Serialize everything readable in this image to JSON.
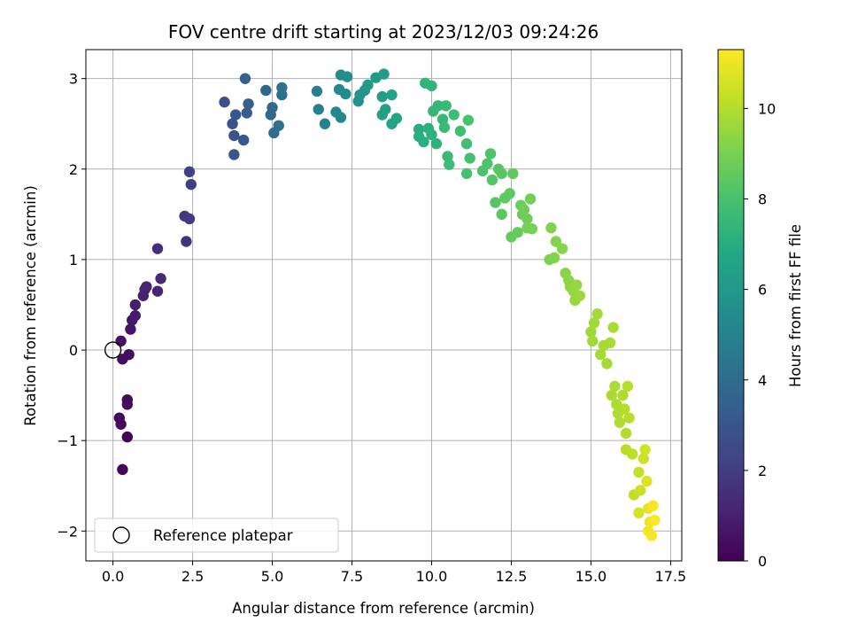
{
  "chart_data": {
    "type": "scatter",
    "title": "FOV centre drift starting at 2023/12/03 09:24:26",
    "xlabel": "Angular distance from reference (arcmin)",
    "ylabel": "Rotation from reference (arcmin)",
    "xlim": [
      -0.85,
      17.85
    ],
    "ylim": [
      -2.33,
      3.32
    ],
    "xticks": [
      "0.0",
      "2.5",
      "5.0",
      "7.5",
      "10.0",
      "12.5",
      "15.0",
      "17.5"
    ],
    "xtick_values": [
      0,
      2.5,
      5,
      7.5,
      10,
      12.5,
      15,
      17.5
    ],
    "yticks": [
      "−2",
      "−1",
      "0",
      "1",
      "2",
      "3"
    ],
    "ytick_values": [
      -2,
      -1,
      0,
      1,
      2,
      3
    ],
    "grid": true,
    "colormap": "viridis",
    "colorbar": {
      "label": "Hours from first FF file",
      "range": [
        0,
        11.3
      ],
      "ticks": [
        "0",
        "2",
        "4",
        "6",
        "8",
        "10"
      ],
      "tick_values": [
        0,
        2,
        4,
        6,
        8,
        10
      ]
    },
    "legend": {
      "placement": "lower-left",
      "entries": [
        "Reference platepar"
      ]
    },
    "reference_point": {
      "x": 0,
      "y": 0
    },
    "points": [
      {
        "x": 0.45,
        "y": -0.96,
        "t": 0.1
      },
      {
        "x": 0.3,
        "y": -1.32,
        "t": 0.15
      },
      {
        "x": 0.2,
        "y": -0.75,
        "t": 0.2
      },
      {
        "x": 0.25,
        "y": -0.82,
        "t": 0.25
      },
      {
        "x": 0.45,
        "y": -0.55,
        "t": 0.3
      },
      {
        "x": 0.45,
        "y": -0.6,
        "t": 0.35
      },
      {
        "x": 0.5,
        "y": -0.05,
        "t": 0.4
      },
      {
        "x": 0.3,
        "y": -0.1,
        "t": 0.45
      },
      {
        "x": 0.25,
        "y": 0.1,
        "t": 0.5
      },
      {
        "x": 0.55,
        "y": 0.23,
        "t": 0.6
      },
      {
        "x": 0.6,
        "y": 0.33,
        "t": 0.7
      },
      {
        "x": 0.7,
        "y": 0.38,
        "t": 0.8
      },
      {
        "x": 0.7,
        "y": 0.5,
        "t": 0.9
      },
      {
        "x": 0.95,
        "y": 0.6,
        "t": 1.0
      },
      {
        "x": 1.0,
        "y": 0.67,
        "t": 1.05
      },
      {
        "x": 1.05,
        "y": 0.7,
        "t": 1.1
      },
      {
        "x": 1.4,
        "y": 0.65,
        "t": 1.2
      },
      {
        "x": 1.5,
        "y": 0.79,
        "t": 1.3
      },
      {
        "x": 1.4,
        "y": 1.12,
        "t": 1.45
      },
      {
        "x": 2.3,
        "y": 1.2,
        "t": 1.7
      },
      {
        "x": 2.25,
        "y": 1.48,
        "t": 1.85
      },
      {
        "x": 2.4,
        "y": 1.45,
        "t": 1.95
      },
      {
        "x": 2.45,
        "y": 1.83,
        "t": 2.05
      },
      {
        "x": 2.4,
        "y": 1.97,
        "t": 2.15
      },
      {
        "x": 3.5,
        "y": 2.74,
        "t": 2.7
      },
      {
        "x": 3.75,
        "y": 2.5,
        "t": 2.8
      },
      {
        "x": 3.8,
        "y": 2.37,
        "t": 2.9
      },
      {
        "x": 3.85,
        "y": 2.6,
        "t": 3.0
      },
      {
        "x": 3.8,
        "y": 2.16,
        "t": 3.05
      },
      {
        "x": 4.1,
        "y": 2.32,
        "t": 3.15
      },
      {
        "x": 4.2,
        "y": 2.62,
        "t": 3.3
      },
      {
        "x": 4.25,
        "y": 2.72,
        "t": 3.4
      },
      {
        "x": 4.15,
        "y": 3.0,
        "t": 3.5
      },
      {
        "x": 4.8,
        "y": 2.87,
        "t": 3.75
      },
      {
        "x": 4.95,
        "y": 2.6,
        "t": 3.85
      },
      {
        "x": 5.0,
        "y": 2.68,
        "t": 3.95
      },
      {
        "x": 5.05,
        "y": 2.4,
        "t": 4.0
      },
      {
        "x": 5.2,
        "y": 2.48,
        "t": 4.1
      },
      {
        "x": 5.3,
        "y": 2.82,
        "t": 4.2
      },
      {
        "x": 5.3,
        "y": 2.9,
        "t": 4.3
      },
      {
        "x": 6.4,
        "y": 2.86,
        "t": 4.8
      },
      {
        "x": 6.45,
        "y": 2.66,
        "t": 4.9
      },
      {
        "x": 6.65,
        "y": 2.5,
        "t": 5.0
      },
      {
        "x": 7.0,
        "y": 2.63,
        "t": 5.15
      },
      {
        "x": 7.15,
        "y": 2.57,
        "t": 5.2
      },
      {
        "x": 7.1,
        "y": 2.88,
        "t": 5.3
      },
      {
        "x": 7.3,
        "y": 2.83,
        "t": 5.4
      },
      {
        "x": 7.15,
        "y": 3.04,
        "t": 5.5
      },
      {
        "x": 7.35,
        "y": 3.02,
        "t": 5.6
      },
      {
        "x": 7.7,
        "y": 2.75,
        "t": 5.75
      },
      {
        "x": 7.75,
        "y": 2.82,
        "t": 5.8
      },
      {
        "x": 7.9,
        "y": 2.87,
        "t": 5.9
      },
      {
        "x": 8.0,
        "y": 2.93,
        "t": 6.0
      },
      {
        "x": 8.25,
        "y": 3.01,
        "t": 6.1
      },
      {
        "x": 8.5,
        "y": 3.05,
        "t": 6.2
      },
      {
        "x": 8.45,
        "y": 2.8,
        "t": 6.3
      },
      {
        "x": 8.55,
        "y": 2.66,
        "t": 6.4
      },
      {
        "x": 8.45,
        "y": 2.6,
        "t": 6.45
      },
      {
        "x": 8.75,
        "y": 2.82,
        "t": 6.55
      },
      {
        "x": 8.75,
        "y": 2.5,
        "t": 6.6
      },
      {
        "x": 8.9,
        "y": 2.56,
        "t": 6.7
      },
      {
        "x": 9.6,
        "y": 2.44,
        "t": 7.0
      },
      {
        "x": 9.6,
        "y": 2.36,
        "t": 7.05
      },
      {
        "x": 9.75,
        "y": 2.3,
        "t": 7.1
      },
      {
        "x": 9.9,
        "y": 2.45,
        "t": 7.15
      },
      {
        "x": 10.0,
        "y": 2.38,
        "t": 7.2
      },
      {
        "x": 10.15,
        "y": 2.28,
        "t": 7.25
      },
      {
        "x": 9.8,
        "y": 2.95,
        "t": 7.3
      },
      {
        "x": 10.0,
        "y": 2.92,
        "t": 7.35
      },
      {
        "x": 10.05,
        "y": 2.64,
        "t": 7.4
      },
      {
        "x": 10.2,
        "y": 2.7,
        "t": 7.45
      },
      {
        "x": 10.35,
        "y": 2.55,
        "t": 7.5
      },
      {
        "x": 10.45,
        "y": 2.7,
        "t": 7.55
      },
      {
        "x": 10.4,
        "y": 2.46,
        "t": 7.6
      },
      {
        "x": 10.5,
        "y": 2.14,
        "t": 7.65
      },
      {
        "x": 10.55,
        "y": 2.05,
        "t": 7.7
      },
      {
        "x": 10.7,
        "y": 2.6,
        "t": 7.75
      },
      {
        "x": 10.9,
        "y": 2.42,
        "t": 7.8
      },
      {
        "x": 11.1,
        "y": 2.28,
        "t": 7.85
      },
      {
        "x": 11.2,
        "y": 2.12,
        "t": 7.9
      },
      {
        "x": 11.1,
        "y": 1.95,
        "t": 7.95
      },
      {
        "x": 11.15,
        "y": 2.54,
        "t": 8.0
      },
      {
        "x": 11.6,
        "y": 1.98,
        "t": 8.05
      },
      {
        "x": 11.75,
        "y": 2.06,
        "t": 8.1
      },
      {
        "x": 11.85,
        "y": 2.17,
        "t": 8.15
      },
      {
        "x": 11.9,
        "y": 1.88,
        "t": 8.2
      },
      {
        "x": 12.0,
        "y": 1.63,
        "t": 8.25
      },
      {
        "x": 12.1,
        "y": 2.0,
        "t": 8.3
      },
      {
        "x": 12.2,
        "y": 1.95,
        "t": 8.35
      },
      {
        "x": 12.2,
        "y": 1.5,
        "t": 8.4
      },
      {
        "x": 12.3,
        "y": 1.68,
        "t": 8.45
      },
      {
        "x": 12.45,
        "y": 1.73,
        "t": 8.5
      },
      {
        "x": 12.55,
        "y": 1.95,
        "t": 8.55
      },
      {
        "x": 12.5,
        "y": 1.25,
        "t": 8.6
      },
      {
        "x": 12.7,
        "y": 1.3,
        "t": 8.65
      },
      {
        "x": 12.8,
        "y": 1.6,
        "t": 8.7
      },
      {
        "x": 12.85,
        "y": 1.5,
        "t": 8.75
      },
      {
        "x": 12.9,
        "y": 1.55,
        "t": 8.8
      },
      {
        "x": 13.0,
        "y": 1.45,
        "t": 8.85
      },
      {
        "x": 13.1,
        "y": 1.67,
        "t": 8.9
      },
      {
        "x": 13.0,
        "y": 1.35,
        "t": 8.95
      },
      {
        "x": 13.15,
        "y": 1.34,
        "t": 9.0
      },
      {
        "x": 13.7,
        "y": 1.0,
        "t": 9.05
      },
      {
        "x": 13.75,
        "y": 1.35,
        "t": 9.1
      },
      {
        "x": 13.85,
        "y": 1.02,
        "t": 9.15
      },
      {
        "x": 13.9,
        "y": 1.2,
        "t": 9.2
      },
      {
        "x": 14.1,
        "y": 1.12,
        "t": 9.25
      },
      {
        "x": 14.2,
        "y": 0.85,
        "t": 9.3
      },
      {
        "x": 14.3,
        "y": 0.77,
        "t": 9.35
      },
      {
        "x": 14.35,
        "y": 0.7,
        "t": 9.4
      },
      {
        "x": 14.45,
        "y": 0.65,
        "t": 9.45
      },
      {
        "x": 14.55,
        "y": 0.72,
        "t": 9.5
      },
      {
        "x": 14.5,
        "y": 0.55,
        "t": 9.55
      },
      {
        "x": 14.65,
        "y": 0.6,
        "t": 9.6
      },
      {
        "x": 15.0,
        "y": 0.2,
        "t": 9.65
      },
      {
        "x": 15.05,
        "y": 0.1,
        "t": 9.7
      },
      {
        "x": 15.1,
        "y": 0.3,
        "t": 9.72
      },
      {
        "x": 15.2,
        "y": 0.4,
        "t": 9.74
      },
      {
        "x": 15.3,
        "y": -0.05,
        "t": 9.76
      },
      {
        "x": 15.4,
        "y": 0.05,
        "t": 9.78
      },
      {
        "x": 15.5,
        "y": -0.15,
        "t": 9.8
      },
      {
        "x": 15.6,
        "y": 0.08,
        "t": 9.82
      },
      {
        "x": 15.7,
        "y": 0.25,
        "t": 9.84
      },
      {
        "x": 15.65,
        "y": -0.5,
        "t": 9.86
      },
      {
        "x": 15.75,
        "y": -0.4,
        "t": 9.88
      },
      {
        "x": 15.8,
        "y": -0.6,
        "t": 9.9
      },
      {
        "x": 15.85,
        "y": -0.7,
        "t": 9.92
      },
      {
        "x": 15.9,
        "y": -0.8,
        "t": 9.94
      },
      {
        "x": 16.0,
        "y": -0.5,
        "t": 9.96
      },
      {
        "x": 16.05,
        "y": -0.65,
        "t": 9.98
      },
      {
        "x": 16.1,
        "y": -0.92,
        "t": 10.0
      },
      {
        "x": 16.15,
        "y": -0.4,
        "t": 10.02
      },
      {
        "x": 16.2,
        "y": -0.75,
        "t": 10.05
      },
      {
        "x": 16.1,
        "y": -1.1,
        "t": 10.1
      },
      {
        "x": 16.3,
        "y": -1.15,
        "t": 10.15
      },
      {
        "x": 16.35,
        "y": -1.6,
        "t": 10.2
      },
      {
        "x": 16.5,
        "y": -1.35,
        "t": 10.3
      },
      {
        "x": 16.55,
        "y": -1.55,
        "t": 10.4
      },
      {
        "x": 16.65,
        "y": -1.2,
        "t": 10.45
      },
      {
        "x": 16.7,
        "y": -1.1,
        "t": 10.5
      },
      {
        "x": 16.5,
        "y": -1.8,
        "t": 10.6
      },
      {
        "x": 16.75,
        "y": -1.45,
        "t": 10.7
      },
      {
        "x": 16.8,
        "y": -1.75,
        "t": 10.9
      },
      {
        "x": 16.85,
        "y": -1.9,
        "t": 11.0
      },
      {
        "x": 16.8,
        "y": -2.0,
        "t": 11.1
      },
      {
        "x": 16.95,
        "y": -1.72,
        "t": 11.15
      },
      {
        "x": 16.9,
        "y": -2.05,
        "t": 11.2
      },
      {
        "x": 17.0,
        "y": -1.88,
        "t": 11.25
      }
    ]
  }
}
